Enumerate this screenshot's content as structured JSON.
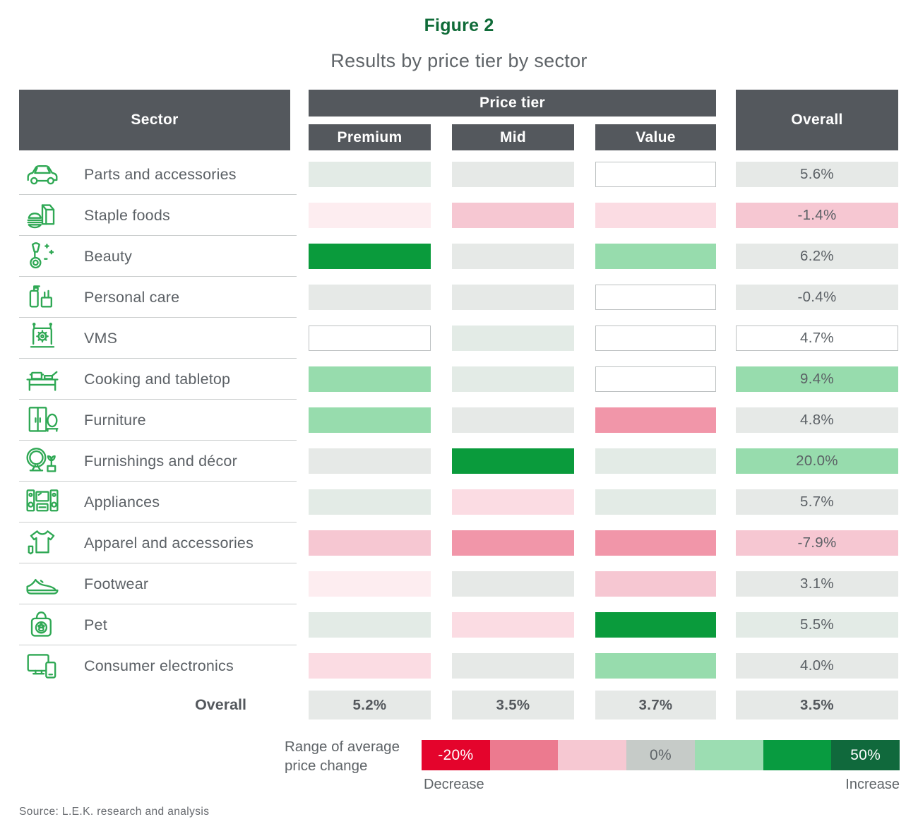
{
  "figure": {
    "label": "Figure 2",
    "title": "Results by price tier by sector"
  },
  "colors": {
    "G3": "#0A9B3C",
    "G2": "#97DCAD",
    "G1": "#E3EBE6",
    "N": "#E6E9E7",
    "P0": "#FDEDF0",
    "P1": "#FBDCE3",
    "P2": "#F6C7D2",
    "P3": "#F196A9",
    "W": "#FFFFFF",
    "white_cell_border": "#BCC0C1",
    "header_bg": "#54585D",
    "accent_green": "#0F6B38",
    "icon_green": "#2FA854"
  },
  "chart_data": {
    "type": "heatmap",
    "figure_label": "Figure 2",
    "title": "Results by price tier by sector",
    "sector_header": "Sector",
    "column_group": "Price tier",
    "columns": [
      "Premium",
      "Mid",
      "Value"
    ],
    "overall_header": "Overall",
    "bins": {
      "G3": "strong increase",
      "G2": "moderate increase",
      "G1": "slight increase",
      "N": "flat ~0%",
      "P0": "slight decrease",
      "P1": "mild decrease",
      "P2": "moderate decrease",
      "P3": "larger decrease",
      "W": "no data"
    },
    "rows": [
      {
        "sector": "Parts and accessories",
        "icon": "car-icon",
        "cells": [
          "G1",
          "N",
          "W"
        ],
        "overall": "5.6%",
        "overall_bin": "N"
      },
      {
        "sector": "Staple foods",
        "icon": "staple-foods-icon",
        "cells": [
          "P0",
          "P2",
          "P1"
        ],
        "overall": "-1.4%",
        "overall_bin": "P2"
      },
      {
        "sector": "Beauty",
        "icon": "beauty-icon",
        "cells": [
          "G3",
          "N",
          "G2"
        ],
        "overall": "6.2%",
        "overall_bin": "N"
      },
      {
        "sector": "Personal care",
        "icon": "personal-care-icon",
        "cells": [
          "N",
          "N",
          "W"
        ],
        "overall": "-0.4%",
        "overall_bin": "N"
      },
      {
        "sector": "VMS",
        "icon": "vms-icon",
        "cells": [
          "W",
          "G1",
          "W"
        ],
        "overall": "4.7%",
        "overall_bin": "W"
      },
      {
        "sector": "Cooking and tabletop",
        "icon": "cooking-icon",
        "cells": [
          "G2",
          "G1",
          "W"
        ],
        "overall": "9.4%",
        "overall_bin": "G2"
      },
      {
        "sector": "Furniture",
        "icon": "furniture-icon",
        "cells": [
          "G2",
          "N",
          "P3"
        ],
        "overall": "4.8%",
        "overall_bin": "N"
      },
      {
        "sector": "Furnishings and décor",
        "icon": "furnishings-icon",
        "cells": [
          "N",
          "G3",
          "G1"
        ],
        "overall": "20.0%",
        "overall_bin": "G2"
      },
      {
        "sector": "Appliances",
        "icon": "appliances-icon",
        "cells": [
          "G1",
          "P1",
          "G1"
        ],
        "overall": "5.7%",
        "overall_bin": "N"
      },
      {
        "sector": "Apparel and accessories",
        "icon": "apparel-icon",
        "cells": [
          "P2",
          "P3",
          "P3"
        ],
        "overall": "-7.9%",
        "overall_bin": "P2"
      },
      {
        "sector": "Footwear",
        "icon": "footwear-icon",
        "cells": [
          "P0",
          "N",
          "P2"
        ],
        "overall": "3.1%",
        "overall_bin": "N"
      },
      {
        "sector": "Pet",
        "icon": "pet-icon",
        "cells": [
          "G1",
          "P1",
          "G3"
        ],
        "overall": "5.5%",
        "overall_bin": "G1"
      },
      {
        "sector": "Consumer electronics",
        "icon": "consumer-electronics-icon",
        "cells": [
          "P1",
          "N",
          "G2"
        ],
        "overall": "4.0%",
        "overall_bin": "N"
      }
    ],
    "footer": {
      "label": "Overall",
      "values": [
        "5.2%",
        "3.5%",
        "3.7%"
      ],
      "overall": "3.5%"
    }
  },
  "legend": {
    "label": "Range of average price change",
    "swatches": [
      {
        "color": "#E4042C",
        "text": "-20%",
        "text_color": "#FFFFFF"
      },
      {
        "color": "#EC7A8F",
        "text": "",
        "text_color": ""
      },
      {
        "color": "#F6C8D2",
        "text": "",
        "text_color": ""
      },
      {
        "color": "#C6CBC8",
        "text": "0%",
        "text_color": "#5F6468"
      },
      {
        "color": "#9CDDB2",
        "text": "",
        "text_color": ""
      },
      {
        "color": "#089B40",
        "text": "",
        "text_color": ""
      },
      {
        "color": "#10693C",
        "text": "50%",
        "text_color": "#FFFFFF"
      }
    ],
    "decrease_label": "Decrease",
    "increase_label": "Increase"
  },
  "source": "Source: L.E.K. research and analysis"
}
